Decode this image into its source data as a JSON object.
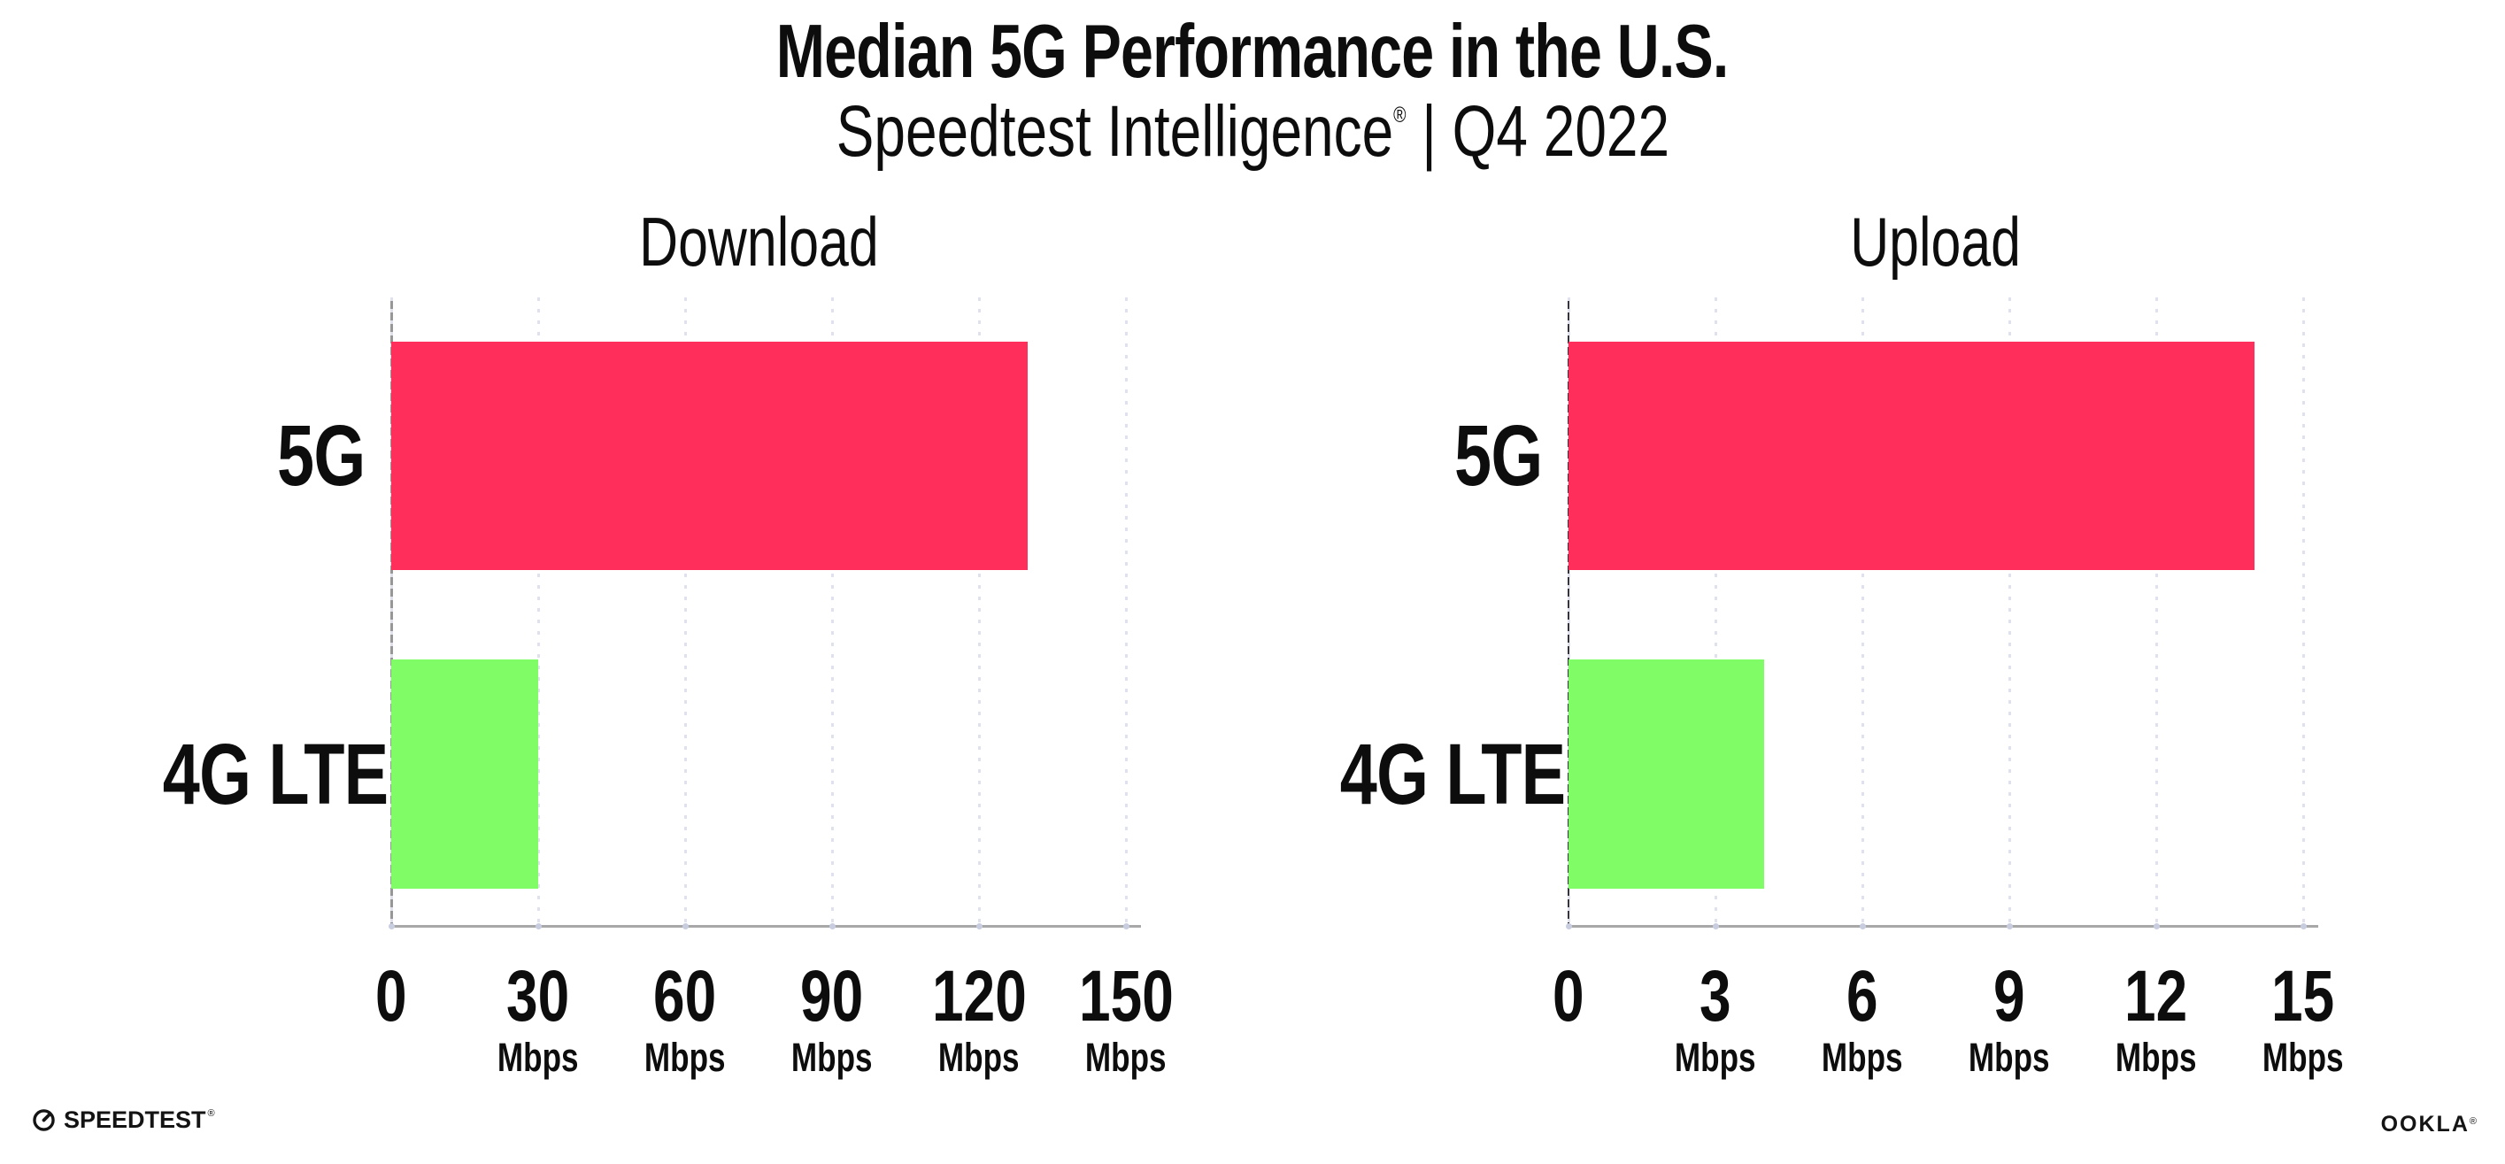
{
  "header": {
    "title": "Median 5G Performance in the U.S.",
    "subtitle": {
      "brand": "Speedtest Intelligence",
      "reg": "®",
      "rest": " | Q4 2022"
    }
  },
  "chart_data": [
    {
      "type": "bar",
      "orientation": "horizontal",
      "title": "Download",
      "categories": [
        "5G",
        "4G LTE"
      ],
      "values": [
        130,
        30
      ],
      "unit": "Mbps",
      "xlim": [
        0,
        150
      ],
      "xticks": [
        0,
        30,
        60,
        90,
        120,
        150
      ],
      "bar_colors": [
        "#ff2e5a",
        "#80fc66"
      ],
      "grid": "vertical-dotted",
      "legend_position": "none"
    },
    {
      "type": "bar",
      "orientation": "horizontal",
      "title": "Upload",
      "categories": [
        "5G",
        "4G LTE"
      ],
      "values": [
        14,
        4
      ],
      "unit": "Mbps",
      "xlim": [
        0,
        15
      ],
      "xticks": [
        0,
        3,
        6,
        9,
        12,
        15
      ],
      "bar_colors": [
        "#ff2e5a",
        "#80fc66"
      ],
      "grid": "vertical-dotted",
      "legend_position": "none"
    }
  ],
  "footer": {
    "speedtest": {
      "label": "SPEEDTEST",
      "reg": "®"
    },
    "ookla": {
      "label": "OOKLA",
      "reg": "®"
    }
  },
  "colors": {
    "bar_5g": "#ff2e5a",
    "bar_4g_lte": "#80fc66",
    "gridline": "#dfe1ef",
    "x_axis": "#a8a8a8",
    "y_axis_download": "#979797",
    "y_axis_upload": "#35353f",
    "text": "#0d0d0d",
    "background": "#ffffff"
  }
}
